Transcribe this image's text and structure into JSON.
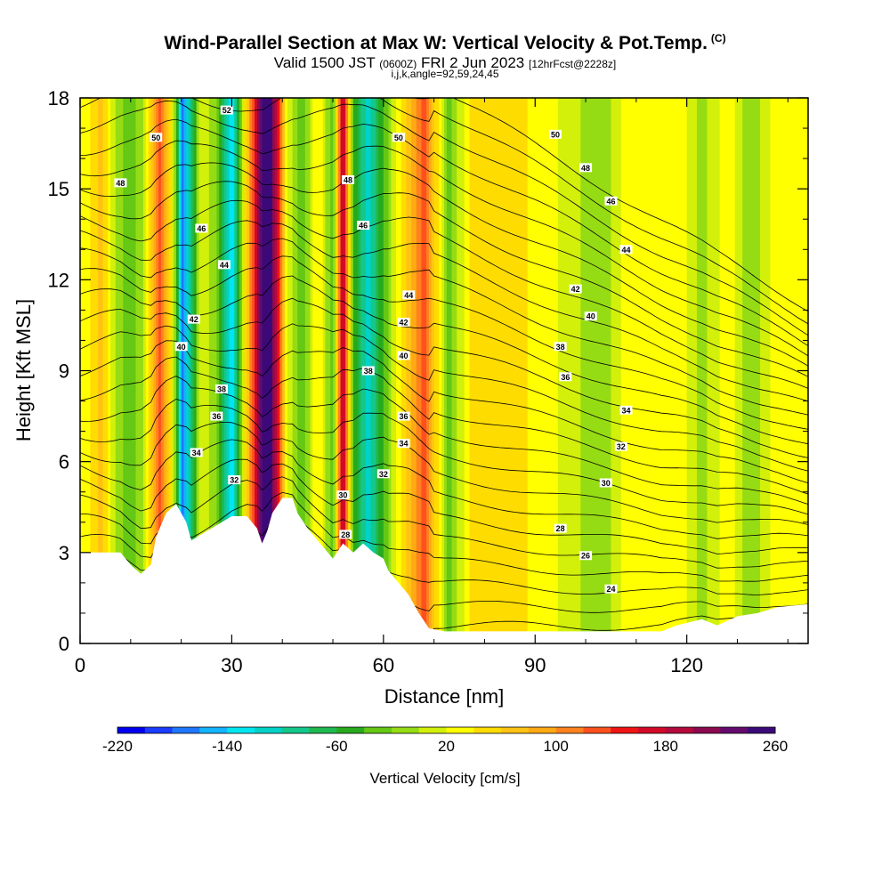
{
  "title": {
    "main": "Wind-Parallel Section at Max W: Vertical Velocity & Pot.Temp.",
    "copyright": "(C)",
    "valid_prefix": "Valid 1500 JST",
    "valid_utc": "(0600Z)",
    "valid_date": "FRI 2 Jun 2023",
    "forecast": "[12hrFcst@2228z]",
    "indices": "i,j,k,angle=92,59,24,45"
  },
  "chart_data": {
    "type": "heatmap",
    "xlabel": "Distance [nm]",
    "ylabel": "Height [Kft MSL]",
    "xlim": [
      0,
      144
    ],
    "ylim": [
      0,
      18
    ],
    "x_ticks": [
      "0",
      "30",
      "60",
      "90",
      "120"
    ],
    "y_ticks": [
      "0",
      "3",
      "6",
      "9",
      "12",
      "15",
      "18"
    ],
    "colorbar": {
      "label": "Vertical Velocity [cm/s]",
      "tick_labels": [
        "-220",
        "-140",
        "-60",
        "20",
        "100",
        "180",
        "260"
      ],
      "colors": [
        "#0000ee",
        "#1a3cff",
        "#1e78ff",
        "#14b4ff",
        "#00e6f0",
        "#00d2c8",
        "#14c88c",
        "#1eb950",
        "#28aa1e",
        "#64c814",
        "#96dc14",
        "#d2f00a",
        "#ffff00",
        "#ffdc00",
        "#ffc314",
        "#ffaa14",
        "#ff821e",
        "#ff501e",
        "#f01414",
        "#d20a28",
        "#b40a3c",
        "#8c0a50",
        "#640a6e",
        "#3c0a78"
      ]
    },
    "vertical_velocity_columns": [
      {
        "x": 1,
        "w": 2
      },
      {
        "x": 4,
        "w": 50
      },
      {
        "x": 7,
        "w": -20
      },
      {
        "x": 10,
        "w": -60
      },
      {
        "x": 13,
        "w": -10
      },
      {
        "x": 16,
        "w": 110
      },
      {
        "x": 19,
        "w": -40
      },
      {
        "x": 20,
        "w": -200
      },
      {
        "x": 24,
        "w": 0
      },
      {
        "x": 27,
        "w": -40
      },
      {
        "x": 30,
        "w": -160
      },
      {
        "x": 33,
        "w": 40
      },
      {
        "x": 37,
        "w": 290
      },
      {
        "x": 41,
        "w": 0
      },
      {
        "x": 44,
        "w": -60
      },
      {
        "x": 47,
        "w": 20
      },
      {
        "x": 50,
        "w": -60
      },
      {
        "x": 52,
        "w": 170
      },
      {
        "x": 54,
        "w": -60
      },
      {
        "x": 57,
        "w": -140
      },
      {
        "x": 60,
        "w": -60
      },
      {
        "x": 63,
        "w": 10
      },
      {
        "x": 68,
        "w": 110
      },
      {
        "x": 73,
        "w": -50
      },
      {
        "x": 78,
        "w": 40
      },
      {
        "x": 85,
        "w": 30
      },
      {
        "x": 92,
        "w": 10
      },
      {
        "x": 97,
        "w": -10
      },
      {
        "x": 103,
        "w": -40
      },
      {
        "x": 108,
        "w": 10
      },
      {
        "x": 113,
        "w": 0
      },
      {
        "x": 118,
        "w": 20
      },
      {
        "x": 123,
        "w": -30
      },
      {
        "x": 128,
        "w": 15
      },
      {
        "x": 133,
        "w": -40
      },
      {
        "x": 138,
        "w": 20
      },
      {
        "x": 143,
        "w": 0
      }
    ],
    "terrain_kft": [
      [
        0,
        3.0
      ],
      [
        8,
        3.0
      ],
      [
        10,
        2.6
      ],
      [
        12,
        2.3
      ],
      [
        14,
        2.6
      ],
      [
        15,
        3.5
      ],
      [
        17,
        4.3
      ],
      [
        19,
        4.6
      ],
      [
        21,
        4.0
      ],
      [
        22,
        3.4
      ],
      [
        24,
        3.6
      ],
      [
        26,
        3.8
      ],
      [
        28,
        4.0
      ],
      [
        30,
        4.2
      ],
      [
        33,
        4.2
      ],
      [
        35,
        3.8
      ],
      [
        36,
        3.3
      ],
      [
        37,
        3.7
      ],
      [
        38,
        4.3
      ],
      [
        40,
        4.8
      ],
      [
        42,
        4.8
      ],
      [
        43,
        4.3
      ],
      [
        45,
        3.8
      ],
      [
        47,
        3.4
      ],
      [
        49,
        3.0
      ],
      [
        50,
        2.8
      ],
      [
        52,
        3.3
      ],
      [
        54,
        3.0
      ],
      [
        56,
        3.3
      ],
      [
        58,
        3.0
      ],
      [
        60,
        2.8
      ],
      [
        61,
        2.4
      ],
      [
        63,
        2.0
      ],
      [
        65,
        1.6
      ],
      [
        67,
        1.0
      ],
      [
        69,
        0.5
      ],
      [
        72,
        0.4
      ],
      [
        90,
        0.4
      ],
      [
        115,
        0.4
      ],
      [
        118,
        0.6
      ],
      [
        123,
        0.8
      ],
      [
        126,
        0.6
      ],
      [
        130,
        0.9
      ],
      [
        134,
        1.0
      ],
      [
        138,
        1.2
      ],
      [
        144,
        1.3
      ]
    ],
    "theta_contour_labels": [
      {
        "text": "52",
        "x": 29,
        "y": 17.6
      },
      {
        "text": "50",
        "x": 15,
        "y": 16.7
      },
      {
        "text": "48",
        "x": 8,
        "y": 15.2
      },
      {
        "text": "46",
        "x": 24,
        "y": 13.7
      },
      {
        "text": "44",
        "x": 28.5,
        "y": 12.5
      },
      {
        "text": "42",
        "x": 22.5,
        "y": 10.7
      },
      {
        "text": "40",
        "x": 20,
        "y": 9.8
      },
      {
        "text": "38",
        "x": 28,
        "y": 8.4
      },
      {
        "text": "36",
        "x": 27,
        "y": 7.5
      },
      {
        "text": "34",
        "x": 23,
        "y": 6.3
      },
      {
        "text": "32",
        "x": 30.5,
        "y": 5.4
      },
      {
        "text": "50",
        "x": 63,
        "y": 16.7
      },
      {
        "text": "48",
        "x": 53,
        "y": 15.3
      },
      {
        "text": "46",
        "x": 56,
        "y": 13.8
      },
      {
        "text": "44",
        "x": 65,
        "y": 11.5
      },
      {
        "text": "42",
        "x": 64,
        "y": 10.6
      },
      {
        "text": "40",
        "x": 64,
        "y": 9.5
      },
      {
        "text": "38",
        "x": 57,
        "y": 9.0
      },
      {
        "text": "36",
        "x": 64,
        "y": 7.5
      },
      {
        "text": "34",
        "x": 64,
        "y": 6.6
      },
      {
        "text": "32",
        "x": 60,
        "y": 5.6
      },
      {
        "text": "30",
        "x": 52,
        "y": 4.9
      },
      {
        "text": "28",
        "x": 52.5,
        "y": 3.6
      },
      {
        "text": "50",
        "x": 94,
        "y": 16.8
      },
      {
        "text": "48",
        "x": 100,
        "y": 15.7
      },
      {
        "text": "46",
        "x": 105,
        "y": 14.6
      },
      {
        "text": "44",
        "x": 108,
        "y": 13.0
      },
      {
        "text": "42",
        "x": 98,
        "y": 11.7
      },
      {
        "text": "40",
        "x": 101,
        "y": 10.8
      },
      {
        "text": "38",
        "x": 95,
        "y": 9.8
      },
      {
        "text": "36",
        "x": 96,
        "y": 8.8
      },
      {
        "text": "34",
        "x": 108,
        "y": 7.7
      },
      {
        "text": "32",
        "x": 107,
        "y": 6.5
      },
      {
        "text": "30",
        "x": 104,
        "y": 5.3
      },
      {
        "text": "28",
        "x": 95,
        "y": 3.8
      },
      {
        "text": "26",
        "x": 100,
        "y": 2.9
      },
      {
        "text": "24",
        "x": 105,
        "y": 1.8
      }
    ]
  }
}
